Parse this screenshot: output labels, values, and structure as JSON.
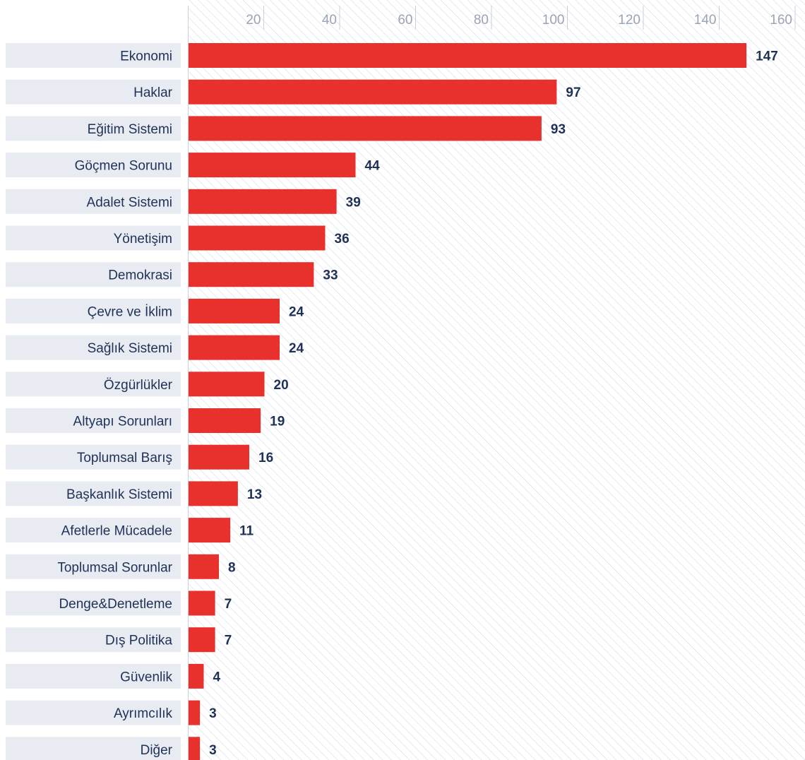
{
  "chart_data": {
    "type": "bar",
    "orientation": "horizontal",
    "title": "",
    "xlabel": "",
    "ylabel": "",
    "xlim": [
      0,
      160
    ],
    "ticks": [
      20,
      40,
      60,
      80,
      100,
      120,
      140,
      160
    ],
    "grid": true,
    "categories": [
      "Ekonomi",
      "Haklar",
      "Eğitim Sistemi",
      "Göçmen Sorunu",
      "Adalet Sistemi",
      "Yönetişim",
      "Demokrasi",
      "Çevre ve İklim",
      "Sağlık Sistemi",
      "Özgürlükler",
      "Altyapı Sorunları",
      "Toplumsal Barış",
      "Başkanlık Sistemi",
      "Afetlerle Mücadele",
      "Toplumsal Sorunlar",
      "Denge&Denetleme",
      "Dış Politika",
      "Güvenlik",
      "Ayrımcılık",
      "Diğer"
    ],
    "values": [
      147,
      97,
      93,
      44,
      39,
      36,
      33,
      24,
      24,
      20,
      19,
      16,
      13,
      11,
      8,
      7,
      7,
      4,
      3,
      3
    ],
    "colors": {
      "bar": "#e8302d",
      "value_label": "#1f3157",
      "category_label": "#1f3157",
      "label_background": "#e8ecf2",
      "tick_label": "#9aa4b5",
      "gridline": "#c9d0dc",
      "hatch": "#d5dbe5"
    }
  }
}
